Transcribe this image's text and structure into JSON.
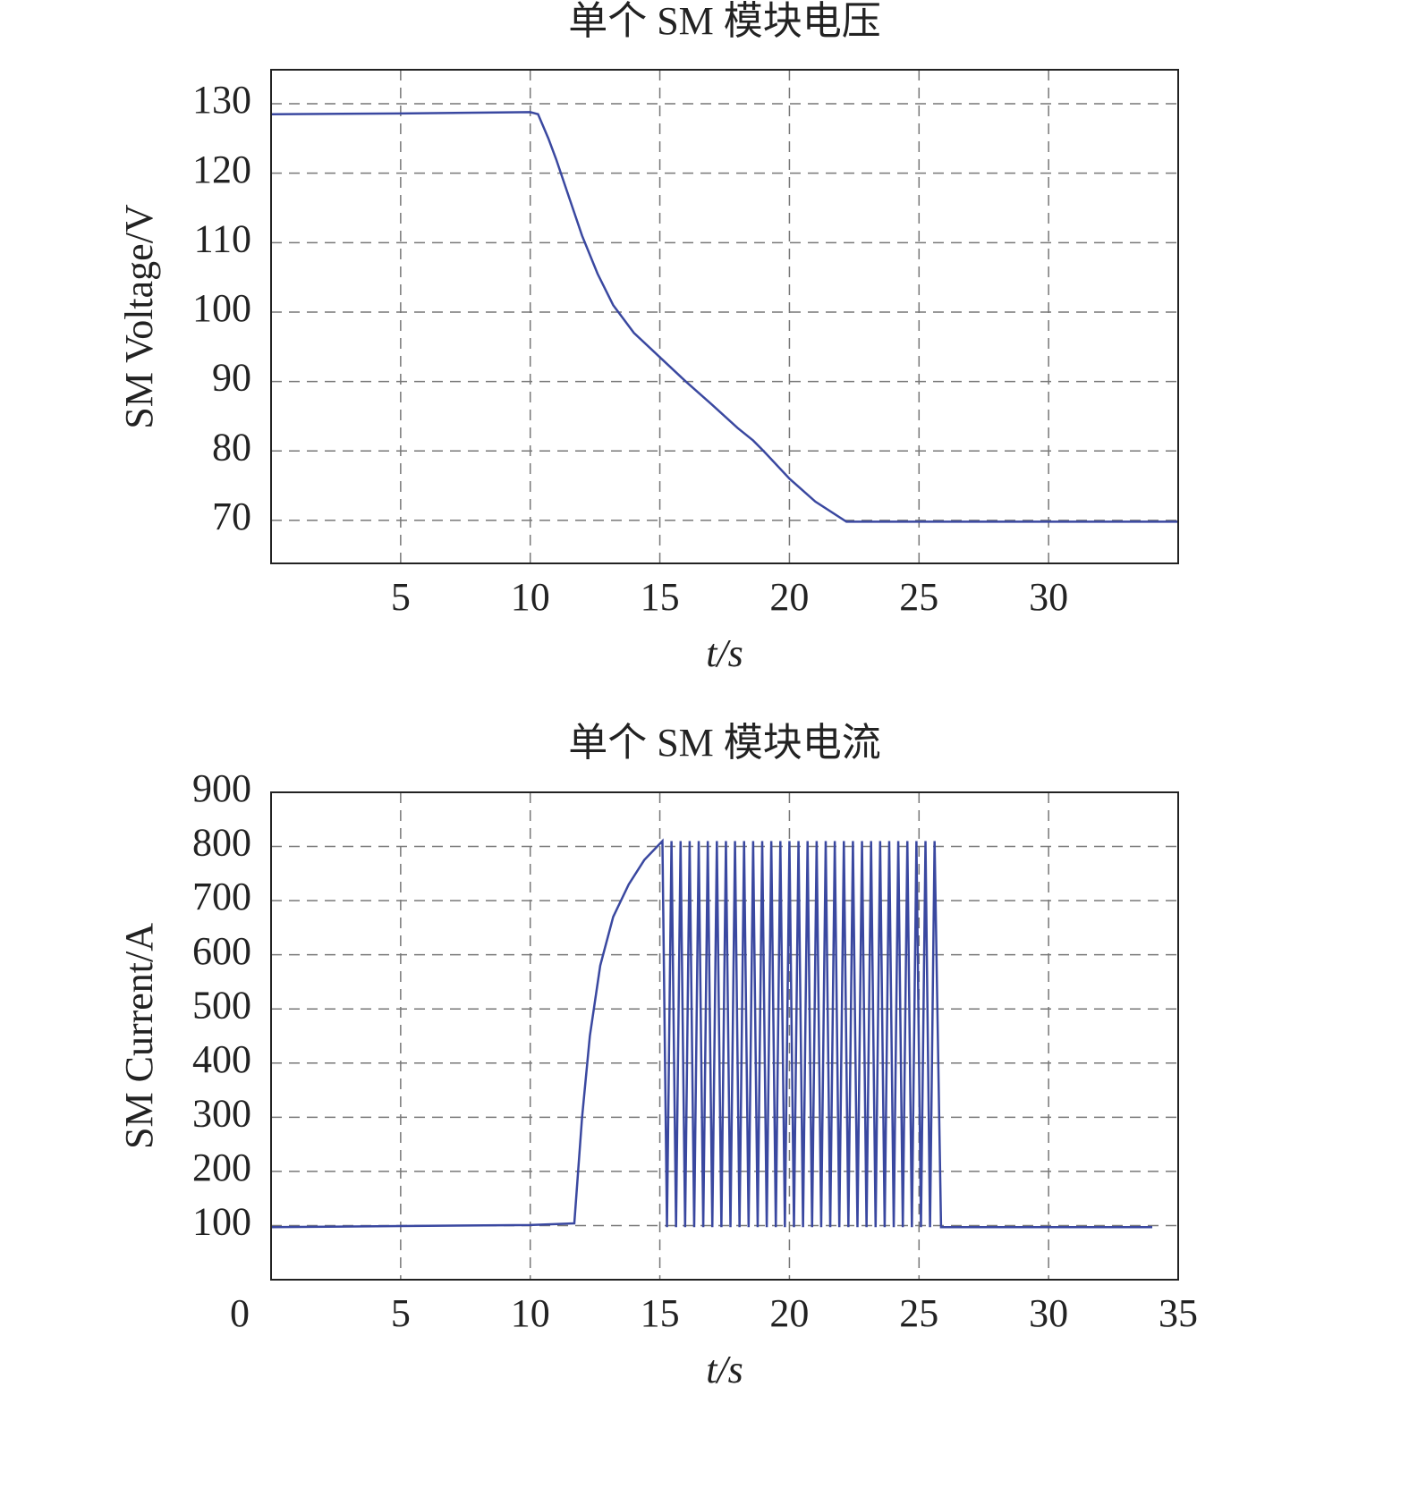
{
  "chart_data": [
    {
      "type": "line",
      "title": "单个 SM 模块电压",
      "ylabel": "SM Voltage/V",
      "xlabel": "t/s",
      "x": [
        0,
        5,
        10,
        10.3,
        10.7,
        11,
        11.5,
        12,
        12.6,
        13.2,
        14,
        15,
        16,
        17,
        18,
        18.6,
        19,
        20,
        21,
        22.2,
        35
      ],
      "values": [
        128.5,
        128.6,
        128.8,
        128.5,
        125,
        122,
        116.5,
        111,
        105.5,
        101,
        97,
        93.5,
        90,
        86.7,
        83.3,
        81.5,
        80,
        76,
        72.7,
        69.8,
        69.8
      ],
      "color": "#3a48a0",
      "xlim": [
        0,
        35
      ],
      "xticks": [
        5,
        10,
        15,
        20,
        25,
        30
      ],
      "ylim": [
        63.8,
        134.9
      ],
      "yticks": [
        70,
        80,
        90,
        100,
        110,
        120,
        130
      ],
      "grid": true
    },
    {
      "type": "line",
      "title": "单个 SM 模块电流",
      "ylabel": "SM Current/A",
      "xlabel": "t/s",
      "x": [
        0,
        5,
        10,
        11.7,
        12,
        12.3,
        12.7,
        13.2,
        13.8,
        14.4,
        15,
        15.1,
        15.275,
        15.45,
        15.625,
        15.8,
        15.975,
        16.15,
        16.325,
        16.5,
        16.675,
        16.85,
        17.025,
        17.2,
        17.375,
        17.55,
        17.725,
        17.9,
        18.075,
        18.25,
        18.425,
        18.6,
        18.775,
        18.95,
        19.125,
        19.3,
        19.475,
        19.65,
        19.825,
        20,
        20.175,
        20.35,
        20.525,
        20.7,
        20.875,
        21.05,
        21.225,
        21.4,
        21.575,
        21.75,
        21.925,
        22.1,
        22.275,
        22.45,
        22.625,
        22.8,
        22.975,
        23.15,
        23.325,
        23.5,
        23.675,
        23.85,
        24.025,
        24.2,
        24.375,
        24.55,
        24.725,
        24.9,
        25.075,
        25.25,
        25.425,
        25.6,
        25.85,
        34
      ],
      "values": [
        97,
        99,
        101,
        104,
        300,
        450,
        580,
        670,
        730,
        775,
        805,
        810,
        97,
        810,
        97,
        810,
        97,
        810,
        97,
        810,
        97,
        810,
        97,
        810,
        97,
        810,
        97,
        810,
        97,
        810,
        97,
        810,
        97,
        810,
        97,
        810,
        97,
        810,
        97,
        810,
        97,
        810,
        97,
        810,
        97,
        810,
        97,
        810,
        97,
        810,
        97,
        810,
        97,
        810,
        97,
        810,
        97,
        810,
        97,
        810,
        97,
        810,
        97,
        810,
        97,
        810,
        97,
        810,
        97,
        810,
        97,
        810,
        97,
        97
      ],
      "color": "#3a48a0",
      "xlim": [
        0,
        35
      ],
      "xticks": [
        0,
        5,
        10,
        15,
        20,
        25,
        30,
        35
      ],
      "ylim": [
        0,
        900
      ],
      "yticks": [
        100,
        200,
        300,
        400,
        500,
        600,
        700,
        800,
        900
      ],
      "grid": true
    }
  ]
}
